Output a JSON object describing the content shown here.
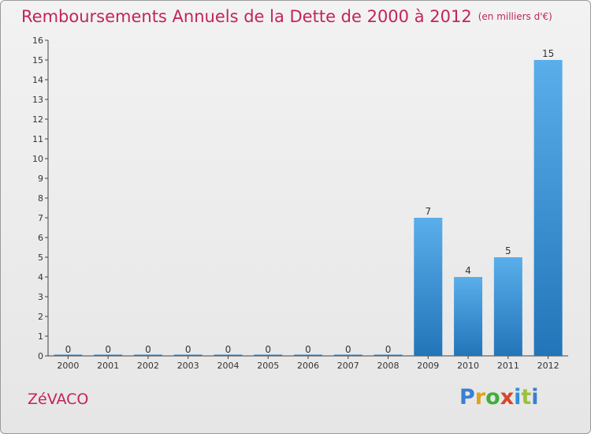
{
  "title": "Remboursements Annuels de la Dette de 2000 à 2012",
  "subtitle": "(en milliers d'€)",
  "commune": "ZéVACO",
  "logo": {
    "text": "Proxiti",
    "parts": [
      "P",
      "r",
      "o",
      "x",
      "i",
      "t",
      "i"
    ]
  },
  "colors": {
    "accent": "#c2245c",
    "bar_top": "#5aaeea",
    "bar_bottom": "#2275b8"
  },
  "chart_data": {
    "type": "bar",
    "title": "Remboursements Annuels de la Dette de 2000 à 2012",
    "subtitle": "(en milliers d'€)",
    "xlabel": "",
    "ylabel": "",
    "categories": [
      "2000",
      "2001",
      "2002",
      "2003",
      "2004",
      "2005",
      "2006",
      "2007",
      "2008",
      "2009",
      "2010",
      "2011",
      "2012"
    ],
    "values": [
      0,
      0,
      0,
      0,
      0,
      0,
      0,
      0,
      0,
      7,
      4,
      5,
      15
    ],
    "data_labels": [
      "0",
      "0",
      "0",
      "0",
      "0",
      "0",
      "0",
      "0",
      "0",
      "7",
      "4",
      "5",
      "15"
    ],
    "ylim": [
      0,
      16
    ],
    "yticks": [
      "0",
      "1",
      "2",
      "3",
      "4",
      "5",
      "6",
      "7",
      "8",
      "9",
      "10",
      "11",
      "12",
      "13",
      "14",
      "15",
      "16"
    ],
    "grid": false,
    "legend": "none"
  }
}
